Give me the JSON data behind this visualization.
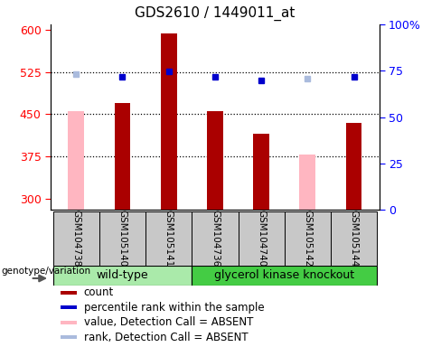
{
  "title": "GDS2610 / 1449011_at",
  "samples": [
    "GSM104738",
    "GSM105140",
    "GSM105141",
    "GSM104736",
    "GSM104740",
    "GSM105142",
    "GSM105144"
  ],
  "count_values": [
    null,
    470,
    593,
    455,
    415,
    null,
    435
  ],
  "count_absent_values": [
    455,
    null,
    null,
    null,
    null,
    378,
    null
  ],
  "rank_values": [
    null,
    516,
    526,
    517,
    510,
    null,
    517
  ],
  "rank_absent_values": [
    521,
    null,
    null,
    null,
    null,
    513,
    null
  ],
  "ylim_left": [
    280,
    610
  ],
  "yticks_left": [
    300,
    375,
    450,
    525,
    600
  ],
  "yticks_right": [
    0,
    25,
    50,
    75,
    100
  ],
  "hline_values": [
    375,
    450,
    525
  ],
  "bar_color_dark": "#AA0000",
  "bar_color_absent": "#FFB6C1",
  "rank_color_dark": "#0000CC",
  "rank_color_absent": "#AABBDD",
  "bar_width": 0.35,
  "title_fontsize": 11,
  "xlabel_area_color": "#C8C8C8",
  "wt_color": "#AAEAAA",
  "gk_color": "#44CC44",
  "legend_fontsize": 8.5,
  "sample_fontsize": 7.5
}
